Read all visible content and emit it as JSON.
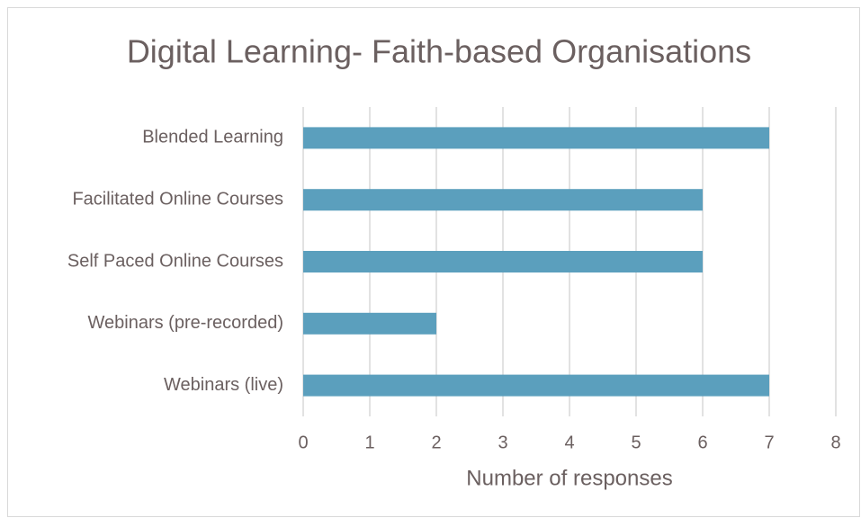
{
  "chart_data": {
    "type": "bar",
    "orientation": "horizontal",
    "title": "Digital Learning- Faith-based Organisations",
    "categories": [
      "Blended Learning",
      "Facilitated Online Courses",
      "Self Paced Online Courses",
      "Webinars (pre-recorded)",
      "Webinars (live)"
    ],
    "values": [
      7,
      6,
      6,
      2,
      7
    ],
    "color": "#5b9fbd",
    "xlabel": "Number of responses",
    "xlim": [
      0,
      8
    ],
    "xticks": [
      0,
      1,
      2,
      3,
      4,
      5,
      6,
      7,
      8
    ],
    "grid": true
  }
}
